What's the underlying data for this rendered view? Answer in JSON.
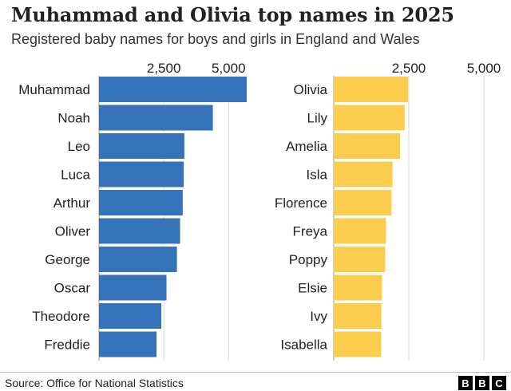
{
  "title": "Muhammad and Olivia top names in 2025",
  "subtitle": "Registered baby names for boys and girls in England and Wales",
  "source": "Source: Office for National Statistics",
  "logo": [
    "B",
    "B",
    "C"
  ],
  "chart_data": [
    {
      "type": "bar",
      "orientation": "horizontal",
      "title": "",
      "xlabel": "",
      "ylabel": "",
      "xlim": [
        0,
        5700
      ],
      "ticks": [
        2500,
        5000
      ],
      "tick_labels": [
        "2,500",
        "5,000"
      ],
      "grid": true,
      "color": "#3572b8",
      "categories": [
        "Muhammad",
        "Noah",
        "Leo",
        "Luca",
        "Arthur",
        "Oliver",
        "George",
        "Oscar",
        "Theodore",
        "Freddie"
      ],
      "values": [
        5721,
        4393,
        3294,
        3271,
        3231,
        3128,
        3007,
        2604,
        2404,
        2219
      ]
    },
    {
      "type": "bar",
      "orientation": "horizontal",
      "title": "",
      "xlabel": "",
      "ylabel": "",
      "xlim": [
        0,
        5000
      ],
      "ticks": [
        2500,
        5000
      ],
      "tick_labels": [
        "2,500",
        "5,000"
      ],
      "grid": true,
      "color": "#fccc4f",
      "categories": [
        "Olivia",
        "Lily",
        "Amelia",
        "Isla",
        "Florence",
        "Freya",
        "Poppy",
        "Elsie",
        "Ivy",
        "Isabella"
      ],
      "values": [
        2478,
        2364,
        2208,
        1958,
        1923,
        1741,
        1715,
        1608,
        1587,
        1579
      ]
    }
  ]
}
